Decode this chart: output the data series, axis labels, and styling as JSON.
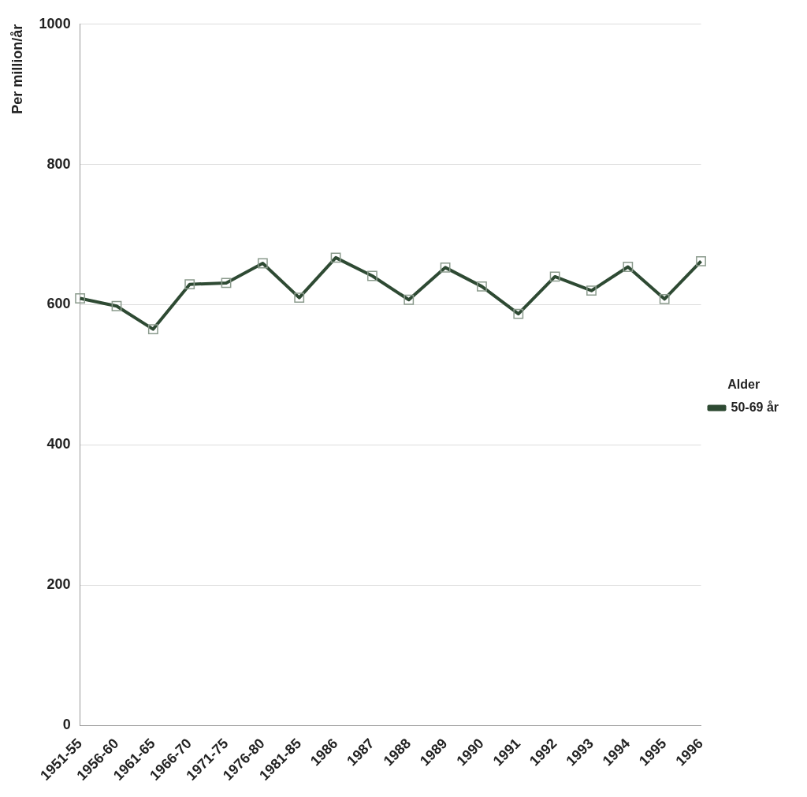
{
  "chart_data": {
    "type": "line",
    "ylabel": "Per million/år",
    "legend_title": "Alder",
    "categories": [
      "1951-55",
      "1956-60",
      "1961-65",
      "1966-70",
      "1971-75",
      "1976-80",
      "1981-85",
      "1986",
      "1987",
      "1988",
      "1989",
      "1990",
      "1991",
      "1992",
      "1993",
      "1994",
      "1995",
      "1996"
    ],
    "series": [
      {
        "name": "50-69 år",
        "color": "#2e4a33",
        "values": [
          609,
          598,
          565,
          629,
          631,
          659,
          610,
          667,
          641,
          607,
          653,
          626,
          587,
          640,
          620,
          654,
          608,
          662
        ]
      }
    ],
    "ylim": [
      0,
      1000
    ],
    "yticks": [
      0,
      200,
      400,
      600,
      800,
      1000
    ],
    "grid": "y",
    "legend": "right",
    "marker": "square",
    "line_style": "solid"
  }
}
